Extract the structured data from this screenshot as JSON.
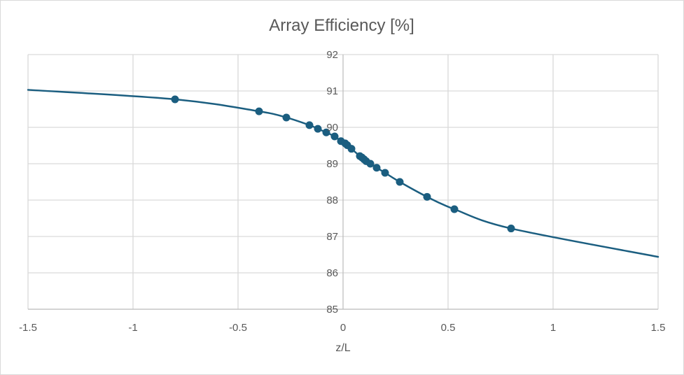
{
  "chart_data": {
    "type": "scatter",
    "title": "Array Efficiency [%]",
    "xlabel": "z/L",
    "ylabel": "",
    "xlim": [
      -1.5,
      1.5
    ],
    "ylim": [
      85,
      92
    ],
    "x_ticks": [
      -1.5,
      -1,
      -0.5,
      0,
      0.5,
      1,
      1.5
    ],
    "y_ticks": [
      85,
      86,
      87,
      88,
      89,
      90,
      91,
      92
    ],
    "x_tick_labels": [
      "-1.5",
      "-1",
      "-0.5",
      "0",
      "0.5",
      "1",
      "1.5"
    ],
    "y_tick_labels": [
      "85",
      "86",
      "87",
      "88",
      "89",
      "90",
      "91",
      "92"
    ],
    "grid": true,
    "legend": "none",
    "series": [
      {
        "color": "#1b5e80",
        "marker": "circle",
        "line": "smooth",
        "curve": {
          "x": [
            -1.5,
            -0.8,
            -0.4,
            -0.27,
            -0.16,
            -0.12,
            -0.08,
            -0.04,
            -0.01,
            0.01,
            0.02,
            0.04,
            0.08,
            0.09,
            0.1,
            0.11,
            0.13,
            0.16,
            0.2,
            0.27,
            0.4,
            0.53,
            0.8,
            1.5
          ],
          "y": [
            91.03,
            90.77,
            90.44,
            90.27,
            90.06,
            89.96,
            89.86,
            89.75,
            89.62,
            89.56,
            89.51,
            89.41,
            89.21,
            89.17,
            89.12,
            89.07,
            89.0,
            88.89,
            88.75,
            88.5,
            88.09,
            87.75,
            87.22,
            86.44
          ]
        },
        "points": {
          "x": [
            -0.8,
            -0.4,
            -0.27,
            -0.16,
            -0.12,
            -0.08,
            -0.04,
            -0.01,
            0.01,
            0.02,
            0.04,
            0.08,
            0.09,
            0.1,
            0.11,
            0.13,
            0.16,
            0.2,
            0.27,
            0.4,
            0.53,
            0.8
          ],
          "y": [
            90.77,
            90.44,
            90.27,
            90.06,
            89.96,
            89.86,
            89.75,
            89.62,
            89.56,
            89.51,
            89.41,
            89.21,
            89.17,
            89.12,
            89.07,
            89.0,
            88.89,
            88.75,
            88.5,
            88.09,
            87.75,
            87.22
          ]
        }
      }
    ]
  }
}
